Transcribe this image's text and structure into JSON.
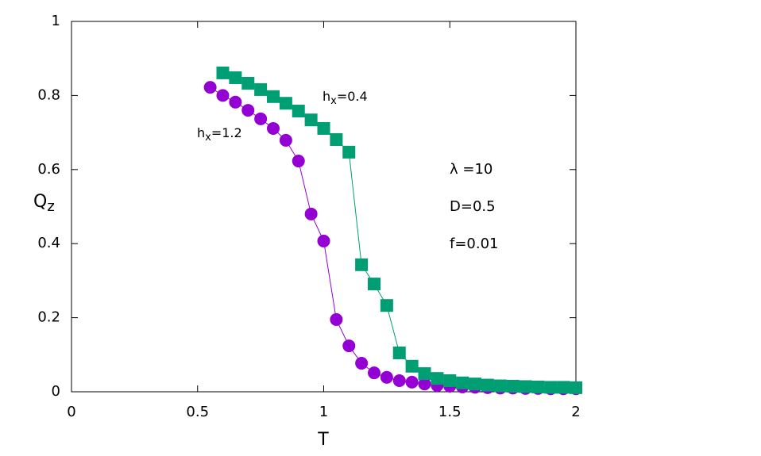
{
  "chart_data": {
    "type": "line",
    "xlabel": "T",
    "ylabel": {
      "main": "Q",
      "sub": "z"
    },
    "xlim": [
      0,
      2
    ],
    "ylim": [
      0,
      1
    ],
    "xticks": [
      0,
      0.5,
      1,
      1.5,
      2
    ],
    "yticks": [
      0,
      0.2,
      0.4,
      0.6,
      0.8,
      1
    ],
    "series": [
      {
        "name": {
          "main": "h",
          "sub": "x",
          "rest": "=1.2"
        },
        "color": "#9400d3",
        "marker": "circle",
        "x": [
          0.55,
          0.6,
          0.65,
          0.7,
          0.75,
          0.8,
          0.85,
          0.9,
          0.95,
          1.0,
          1.05,
          1.1,
          1.15,
          1.2,
          1.25,
          1.3,
          1.35,
          1.4,
          1.45,
          1.5,
          1.55,
          1.6,
          1.65,
          1.7,
          1.75,
          1.8,
          1.85,
          1.9,
          1.95,
          2.0
        ],
        "values": [
          0.822,
          0.8,
          0.782,
          0.76,
          0.737,
          0.711,
          0.679,
          0.623,
          0.48,
          0.407,
          0.195,
          0.124,
          0.077,
          0.051,
          0.039,
          0.03,
          0.026,
          0.021,
          0.017,
          0.015,
          0.013,
          0.012,
          0.011,
          0.01,
          0.01,
          0.009,
          0.009,
          0.008,
          0.008,
          0.008
        ]
      },
      {
        "name": {
          "main": "h",
          "sub": "x",
          "rest": "=0.4"
        },
        "color": "#009e73",
        "marker": "square",
        "x": [
          0.6,
          0.65,
          0.7,
          0.75,
          0.8,
          0.85,
          0.9,
          0.95,
          1.0,
          1.05,
          1.1,
          1.15,
          1.2,
          1.25,
          1.3,
          1.35,
          1.4,
          1.45,
          1.5,
          1.55,
          1.6,
          1.65,
          1.7,
          1.75,
          1.8,
          1.85,
          1.9,
          1.95,
          2.0
        ],
        "values": [
          0.861,
          0.848,
          0.833,
          0.816,
          0.797,
          0.779,
          0.758,
          0.734,
          0.711,
          0.681,
          0.647,
          0.343,
          0.291,
          0.233,
          0.105,
          0.069,
          0.049,
          0.036,
          0.03,
          0.024,
          0.021,
          0.018,
          0.016,
          0.015,
          0.014,
          0.013,
          0.012,
          0.012,
          0.011
        ]
      }
    ],
    "annotations": [
      "λ =10",
      "D=0.5",
      "f=0.01"
    ]
  }
}
